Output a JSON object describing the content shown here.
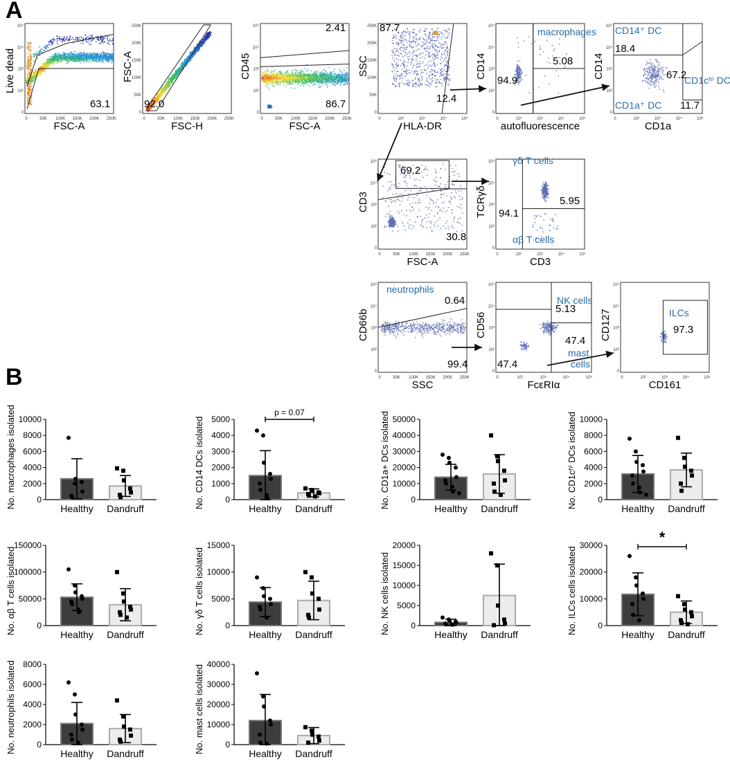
{
  "panel_a_label": "A",
  "panel_b_label": "B",
  "flow_plots": [
    {
      "id": "p1",
      "ylabel": "Live dead",
      "xlabel": "FSC-A",
      "gates": [
        "63.1"
      ],
      "pops": []
    },
    {
      "id": "p2",
      "ylabel": "FSC-A",
      "xlabel": "FSC-H",
      "gates": [
        "92.0"
      ],
      "pops": []
    },
    {
      "id": "p3",
      "ylabel": "CD45",
      "xlabel": "FSC-A",
      "gates": [
        "2.41",
        "86.7"
      ],
      "pops": []
    },
    {
      "id": "p4",
      "ylabel": "SSC",
      "xlabel": "HLA-DR",
      "gates": [
        "87.7",
        "12.4"
      ],
      "pops": []
    },
    {
      "id": "p5",
      "ylabel": "CD14",
      "xlabel": "autofluorescence",
      "gates": [
        "5.08",
        "94.9"
      ],
      "pops": [
        "macrophages"
      ]
    },
    {
      "id": "p6",
      "ylabel": "CD14",
      "xlabel": "CD1a",
      "gates": [
        "18.4",
        "67.2",
        "11.7"
      ],
      "pops": [
        "CD14⁺ DC",
        "CD1cʰⁱ DC",
        "CD1a⁺ DC"
      ]
    },
    {
      "id": "p7",
      "ylabel": "CD3",
      "xlabel": "FSC-A",
      "gates": [
        "69.2",
        "30.8"
      ],
      "pops": []
    },
    {
      "id": "p8",
      "ylabel": "TCRγδ",
      "xlabel": "CD3",
      "gates": [
        "5.95",
        "94.1"
      ],
      "pops": [
        "γδ T cells",
        "αβ T cells"
      ]
    },
    {
      "id": "p9",
      "ylabel": "CD66b",
      "xlabel": "SSC",
      "gates": [
        "0.64",
        "99.4"
      ],
      "pops": [
        "neutrophils"
      ]
    },
    {
      "id": "p10",
      "ylabel": "CD56",
      "xlabel": "FcεRIα",
      "gates": [
        "5.13",
        "47.4",
        "47.4"
      ],
      "pops": [
        "NK cells",
        "mast",
        "cells"
      ]
    },
    {
      "id": "p11",
      "ylabel": "CD127",
      "xlabel": "CD161",
      "gates": [
        "97.3"
      ],
      "pops": [
        "ILCs"
      ]
    }
  ],
  "lin_ticks": [
    "0",
    "50K",
    "100K",
    "150K",
    "200K",
    "250K"
  ],
  "log_ticks": [
    "0",
    "10²",
    "10³",
    "10⁴",
    "10⁵"
  ],
  "chart_data": [
    {
      "type": "bar",
      "ylabel": "No. macrophages isolated",
      "categories": [
        "Healthy",
        "Dandruff"
      ],
      "values": [
        2600,
        1700
      ],
      "sd": [
        2500,
        1300
      ],
      "ylim": [
        0,
        10000
      ],
      "yticks": [
        0,
        2000,
        4000,
        6000,
        8000,
        10000
      ],
      "points": [
        [
          7700,
          2000,
          2600,
          2200,
          1000,
          500,
          300
        ],
        [
          3900,
          3600,
          2400,
          1400,
          900,
          600,
          300
        ]
      ],
      "annotation": ""
    },
    {
      "type": "bar",
      "ylabel": "No. CD14 DCs isolated",
      "categories": [
        "Healthy",
        "Dandruff"
      ],
      "values": [
        1500,
        420
      ],
      "sd": [
        1550,
        250
      ],
      "ylim": [
        0,
        5000
      ],
      "yticks": [
        0,
        1000,
        2000,
        3000,
        4000,
        5000
      ],
      "points": [
        [
          4300,
          4000,
          2300,
          1600,
          1300,
          1000,
          600,
          300,
          100
        ],
        [
          700,
          600,
          550,
          450,
          400,
          350,
          250,
          200
        ]
      ],
      "annotation": "p = 0.07"
    },
    {
      "type": "bar",
      "ylabel": "No. CD1a+ DCs isolated",
      "categories": [
        "Healthy",
        "Dandruff"
      ],
      "values": [
        14000,
        16000
      ],
      "sd": [
        8000,
        12000
      ],
      "ylim": [
        0,
        50000
      ],
      "yticks": [
        0,
        10000,
        20000,
        30000,
        40000,
        50000
      ],
      "points": [
        [
          28000,
          26000,
          23000,
          20000,
          14000,
          12000,
          10000,
          8000,
          5000,
          4000
        ],
        [
          40000,
          27000,
          24000,
          18000,
          12000,
          10000,
          5000,
          3000
        ]
      ],
      "annotation": ""
    },
    {
      "type": "bar",
      "ylabel": "No. CD1cʰⁱ DCs isolated",
      "categories": [
        "Healthy",
        "Dandruff"
      ],
      "values": [
        3200,
        3700
      ],
      "sd": [
        2300,
        2100
      ],
      "ylim": [
        0,
        10000
      ],
      "yticks": [
        0,
        2000,
        4000,
        6000,
        8000,
        10000
      ],
      "points": [
        [
          7600,
          6000,
          4700,
          4300,
          3500,
          3000,
          2000,
          1500,
          900,
          600
        ],
        [
          7700,
          5200,
          4100,
          3600,
          3000,
          2000,
          1100
        ]
      ],
      "annotation": ""
    },
    {
      "type": "bar",
      "ylabel": "No. αβ T cells isolated",
      "categories": [
        "Healthy",
        "Dandruff"
      ],
      "values": [
        53000,
        39000
      ],
      "sd": [
        25000,
        30000
      ],
      "ylim": [
        0,
        150000
      ],
      "yticks": [
        0,
        50000,
        100000,
        150000
      ],
      "points": [
        [
          105000,
          75000,
          62000,
          55000,
          50000,
          45000,
          40000,
          30000,
          25000
        ],
        [
          100000,
          60000,
          45000,
          35000,
          30000,
          25000,
          20000,
          15000
        ]
      ],
      "annotation": ""
    },
    {
      "type": "bar",
      "ylabel": "No. γδ T cells isolated",
      "categories": [
        "Healthy",
        "Dandruff"
      ],
      "values": [
        4400,
        4700
      ],
      "sd": [
        2700,
        3600
      ],
      "ylim": [
        0,
        15000
      ],
      "yticks": [
        0,
        5000,
        10000,
        15000
      ],
      "points": [
        [
          9000,
          7000,
          5500,
          5000,
          4000,
          3500,
          3000,
          1500
        ],
        [
          10000,
          9000,
          6000,
          5000,
          3000,
          2000,
          1500
        ]
      ],
      "annotation": ""
    },
    {
      "type": "bar",
      "ylabel": "No. NK cells isolated",
      "categories": [
        "Healthy",
        "Dandruff"
      ],
      "values": [
        800,
        7500
      ],
      "sd": [
        800,
        7800
      ],
      "ylim": [
        0,
        20000
      ],
      "yticks": [
        0,
        5000,
        10000,
        15000,
        20000
      ],
      "points": [
        [
          2000,
          1500,
          1200,
          1000,
          700,
          500,
          300,
          200
        ],
        [
          18000,
          15000,
          5000,
          1500,
          500,
          100
        ]
      ],
      "annotation": ""
    },
    {
      "type": "bar",
      "ylabel": "No. ILCs cells isolated",
      "categories": [
        "Healthy",
        "Dandruff"
      ],
      "values": [
        11700,
        5000
      ],
      "sd": [
        8000,
        4200
      ],
      "ylim": [
        0,
        30000
      ],
      "yticks": [
        0,
        10000,
        20000,
        30000
      ],
      "points": [
        [
          26000,
          18000,
          15000,
          12000,
          10000,
          8000,
          4000,
          2000
        ],
        [
          11000,
          8000,
          6000,
          5000,
          3500,
          2000,
          1000,
          500
        ]
      ],
      "annotation": "*"
    },
    {
      "type": "bar",
      "ylabel": "No. neutrophils isolated",
      "categories": [
        "Healthy",
        "Dandruff"
      ],
      "values": [
        2100,
        1600
      ],
      "sd": [
        2100,
        1400
      ],
      "ylim": [
        0,
        8000
      ],
      "yticks": [
        0,
        2000,
        4000,
        6000,
        8000
      ],
      "points": [
        [
          6200,
          5000,
          3000,
          2000,
          1500,
          1000,
          500,
          200
        ],
        [
          4400,
          2800,
          1800,
          1500,
          900,
          500,
          300
        ]
      ],
      "annotation": ""
    },
    {
      "type": "bar",
      "ylabel": "No. mast cells isolated",
      "categories": [
        "Healthy",
        "Dandruff"
      ],
      "values": [
        12000,
        4500
      ],
      "sd": [
        13000,
        4000
      ],
      "ylim": [
        0,
        40000
      ],
      "yticks": [
        0,
        10000,
        20000,
        30000,
        40000
      ],
      "points": [
        [
          35500,
          24000,
          19000,
          12000,
          10000,
          5000,
          1000,
          500
        ],
        [
          8700,
          7000,
          5000,
          4000,
          2000,
          1000
        ]
      ],
      "annotation": ""
    }
  ],
  "colors": {
    "healthy_bar": "#3d3d3d",
    "dandruff_bar": "#ececec",
    "pop_label": "#2b6aa6",
    "gate": "#222222"
  }
}
